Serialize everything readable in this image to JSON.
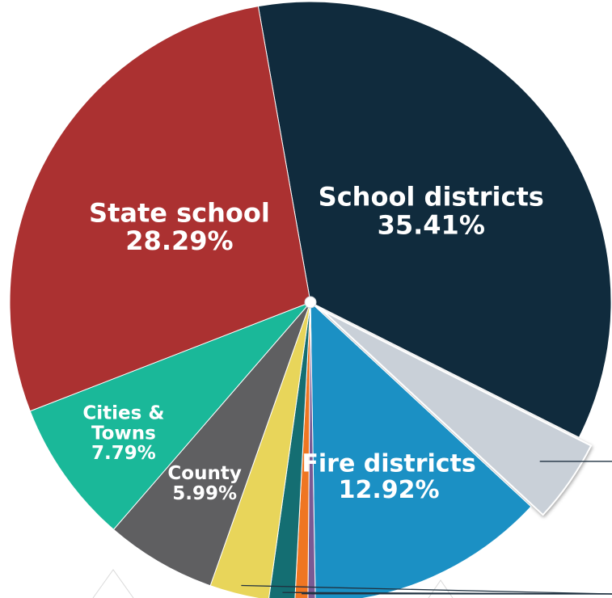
{
  "chart_data": {
    "type": "pie",
    "slices": [
      {
        "key": "school",
        "label": "School districts",
        "value": 35.41,
        "percent_text": "35.41%",
        "color": "#102b3d"
      },
      {
        "key": "gray",
        "label": "",
        "value": 4.5,
        "percent_text": "",
        "color": "#c9d0d8",
        "exploded": true
      },
      {
        "key": "fire",
        "label": "Fire districts",
        "value": 12.92,
        "percent_text": "12.92%",
        "color": "#1b90c4"
      },
      {
        "key": "purple",
        "label": "",
        "value": 0.4,
        "percent_text": "",
        "color": "#7a5a94"
      },
      {
        "key": "orange",
        "label": "",
        "value": 0.7,
        "percent_text": "",
        "color": "#ef7622"
      },
      {
        "key": "teal",
        "label": "",
        "value": 1.4,
        "percent_text": "",
        "color": "#146e72"
      },
      {
        "key": "yellow",
        "label": "",
        "value": 3.2,
        "percent_text": "",
        "color": "#e8d55a"
      },
      {
        "key": "county",
        "label": "County",
        "value": 5.99,
        "percent_text": "5.99%",
        "color": "#5f5f61"
      },
      {
        "key": "cities",
        "label": "Cities & Towns",
        "value": 7.79,
        "percent_text": "7.79%",
        "color": "#1ab899"
      },
      {
        "key": "state",
        "label": "State school",
        "value": 28.29,
        "percent_text": "28.29%",
        "color": "#ab3131"
      }
    ]
  }
}
